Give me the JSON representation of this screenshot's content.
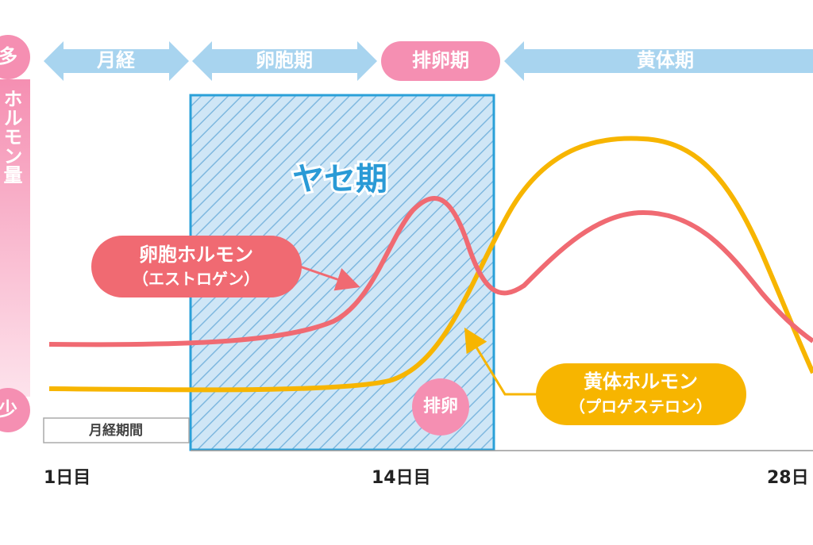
{
  "phases": [
    "月経",
    "卵胞期",
    "排卵期",
    "黄体期"
  ],
  "axis": {
    "high": "多",
    "label": "ホルモン量",
    "low": "少"
  },
  "highlight": "ヤセ期",
  "estrogen": {
    "name": "卵胞ホルモン",
    "sub": "（エストロゲン）"
  },
  "progesterone": {
    "name": "黄体ホルモン",
    "sub": "（プロゲステロン）"
  },
  "ovulation": "排卵",
  "menstruation_period": "月経期間",
  "days": [
    "1日目",
    "14日目",
    "28日"
  ]
}
